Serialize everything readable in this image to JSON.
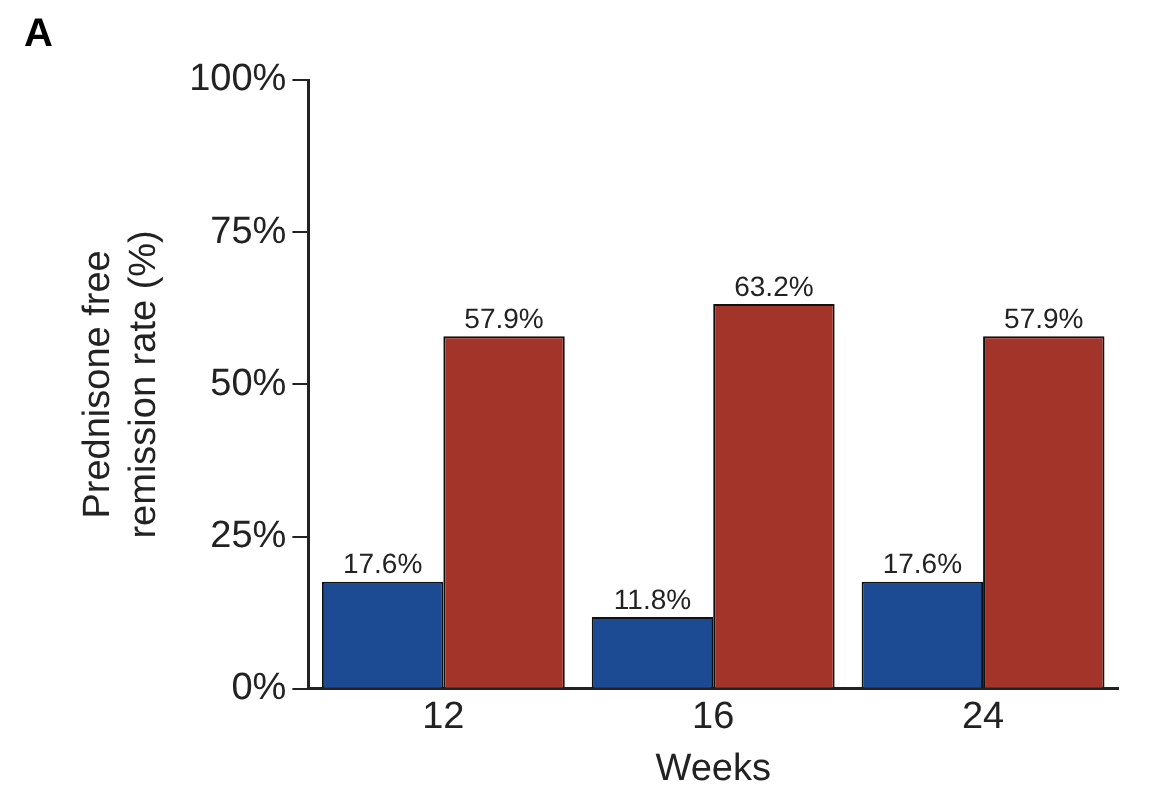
{
  "chart_data": {
    "type": "bar",
    "xlabel": "Weeks",
    "ylabel": "Prednisone free remission rate (%)",
    "annotations": [
      "A"
    ],
    "categories": [
      "12",
      "16",
      "24"
    ],
    "series": [
      {
        "color": "#1c4b94",
        "values": [
          17.6,
          11.8,
          17.6
        ],
        "value_labels": [
          "17.6%",
          "11.8%",
          "17.6%"
        ]
      },
      {
        "color": "#a3342a",
        "values": [
          57.9,
          63.2,
          57.9
        ],
        "value_labels": [
          "57.9%",
          "63.2%",
          "57.9%"
        ]
      }
    ],
    "ylim": [
      0,
      100
    ],
    "yticks": [
      {
        "value": 0,
        "label": "0%"
      },
      {
        "value": 25,
        "label": "25%"
      },
      {
        "value": 50,
        "label": "50%"
      },
      {
        "value": 75,
        "label": "75%"
      },
      {
        "value": 100,
        "label": "100%"
      }
    ],
    "grid": false,
    "legend": false
  }
}
